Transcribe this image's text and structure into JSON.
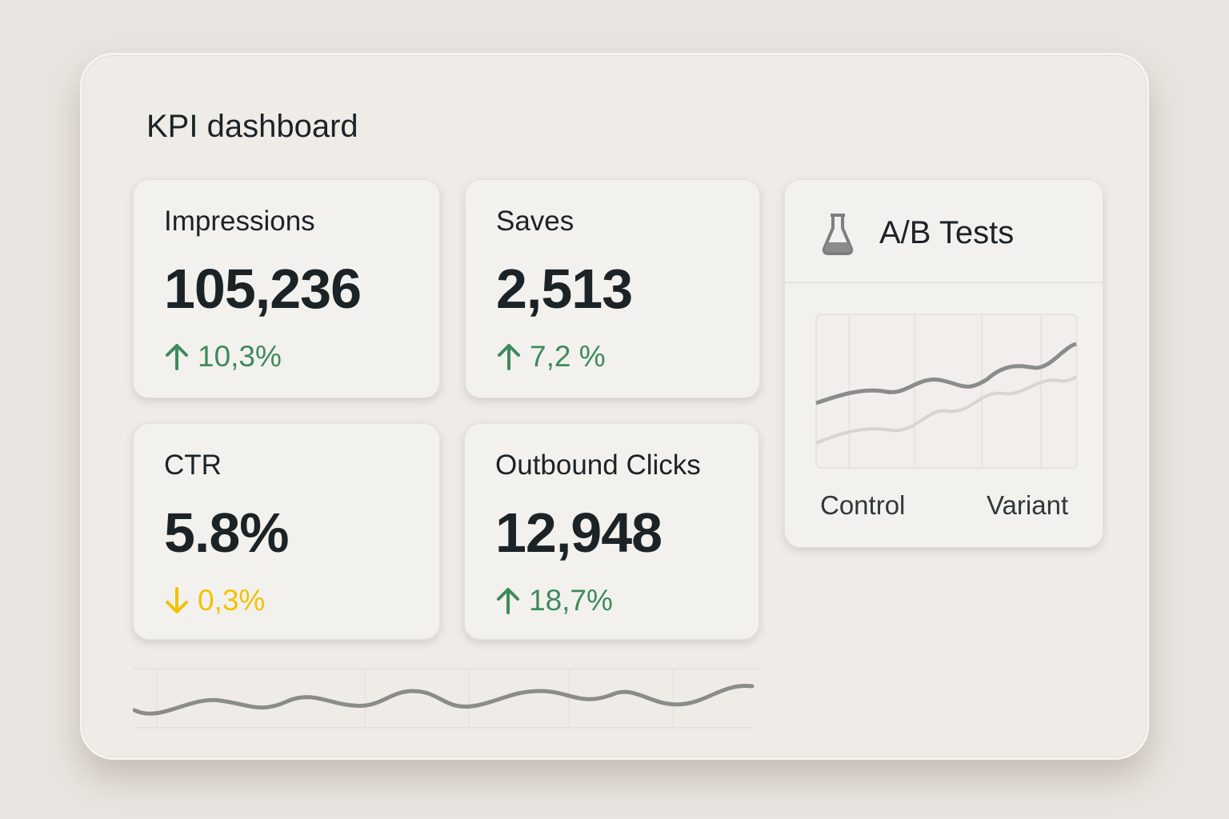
{
  "header": {
    "title": "KPI dashboard"
  },
  "kpis": [
    {
      "label": "Impressions",
      "value": "105,236",
      "change": "10,3%",
      "direction": "up",
      "color": "#3f8a5c"
    },
    {
      "label": "Saves",
      "value": "2,513",
      "change": "7,2 %",
      "direction": "up",
      "color": "#3f8a5c"
    },
    {
      "label": "CTR",
      "value": "5.8%",
      "change": "0,3%",
      "direction": "down",
      "color": "#f2c200"
    },
    {
      "label": "Outbound Clicks",
      "value": "12,948",
      "change": "18,7%",
      "direction": "up",
      "color": "#3f8a5c"
    }
  ],
  "ab_tests": {
    "title": "A/B Tests",
    "legend": [
      "Control",
      "Variant"
    ]
  }
}
